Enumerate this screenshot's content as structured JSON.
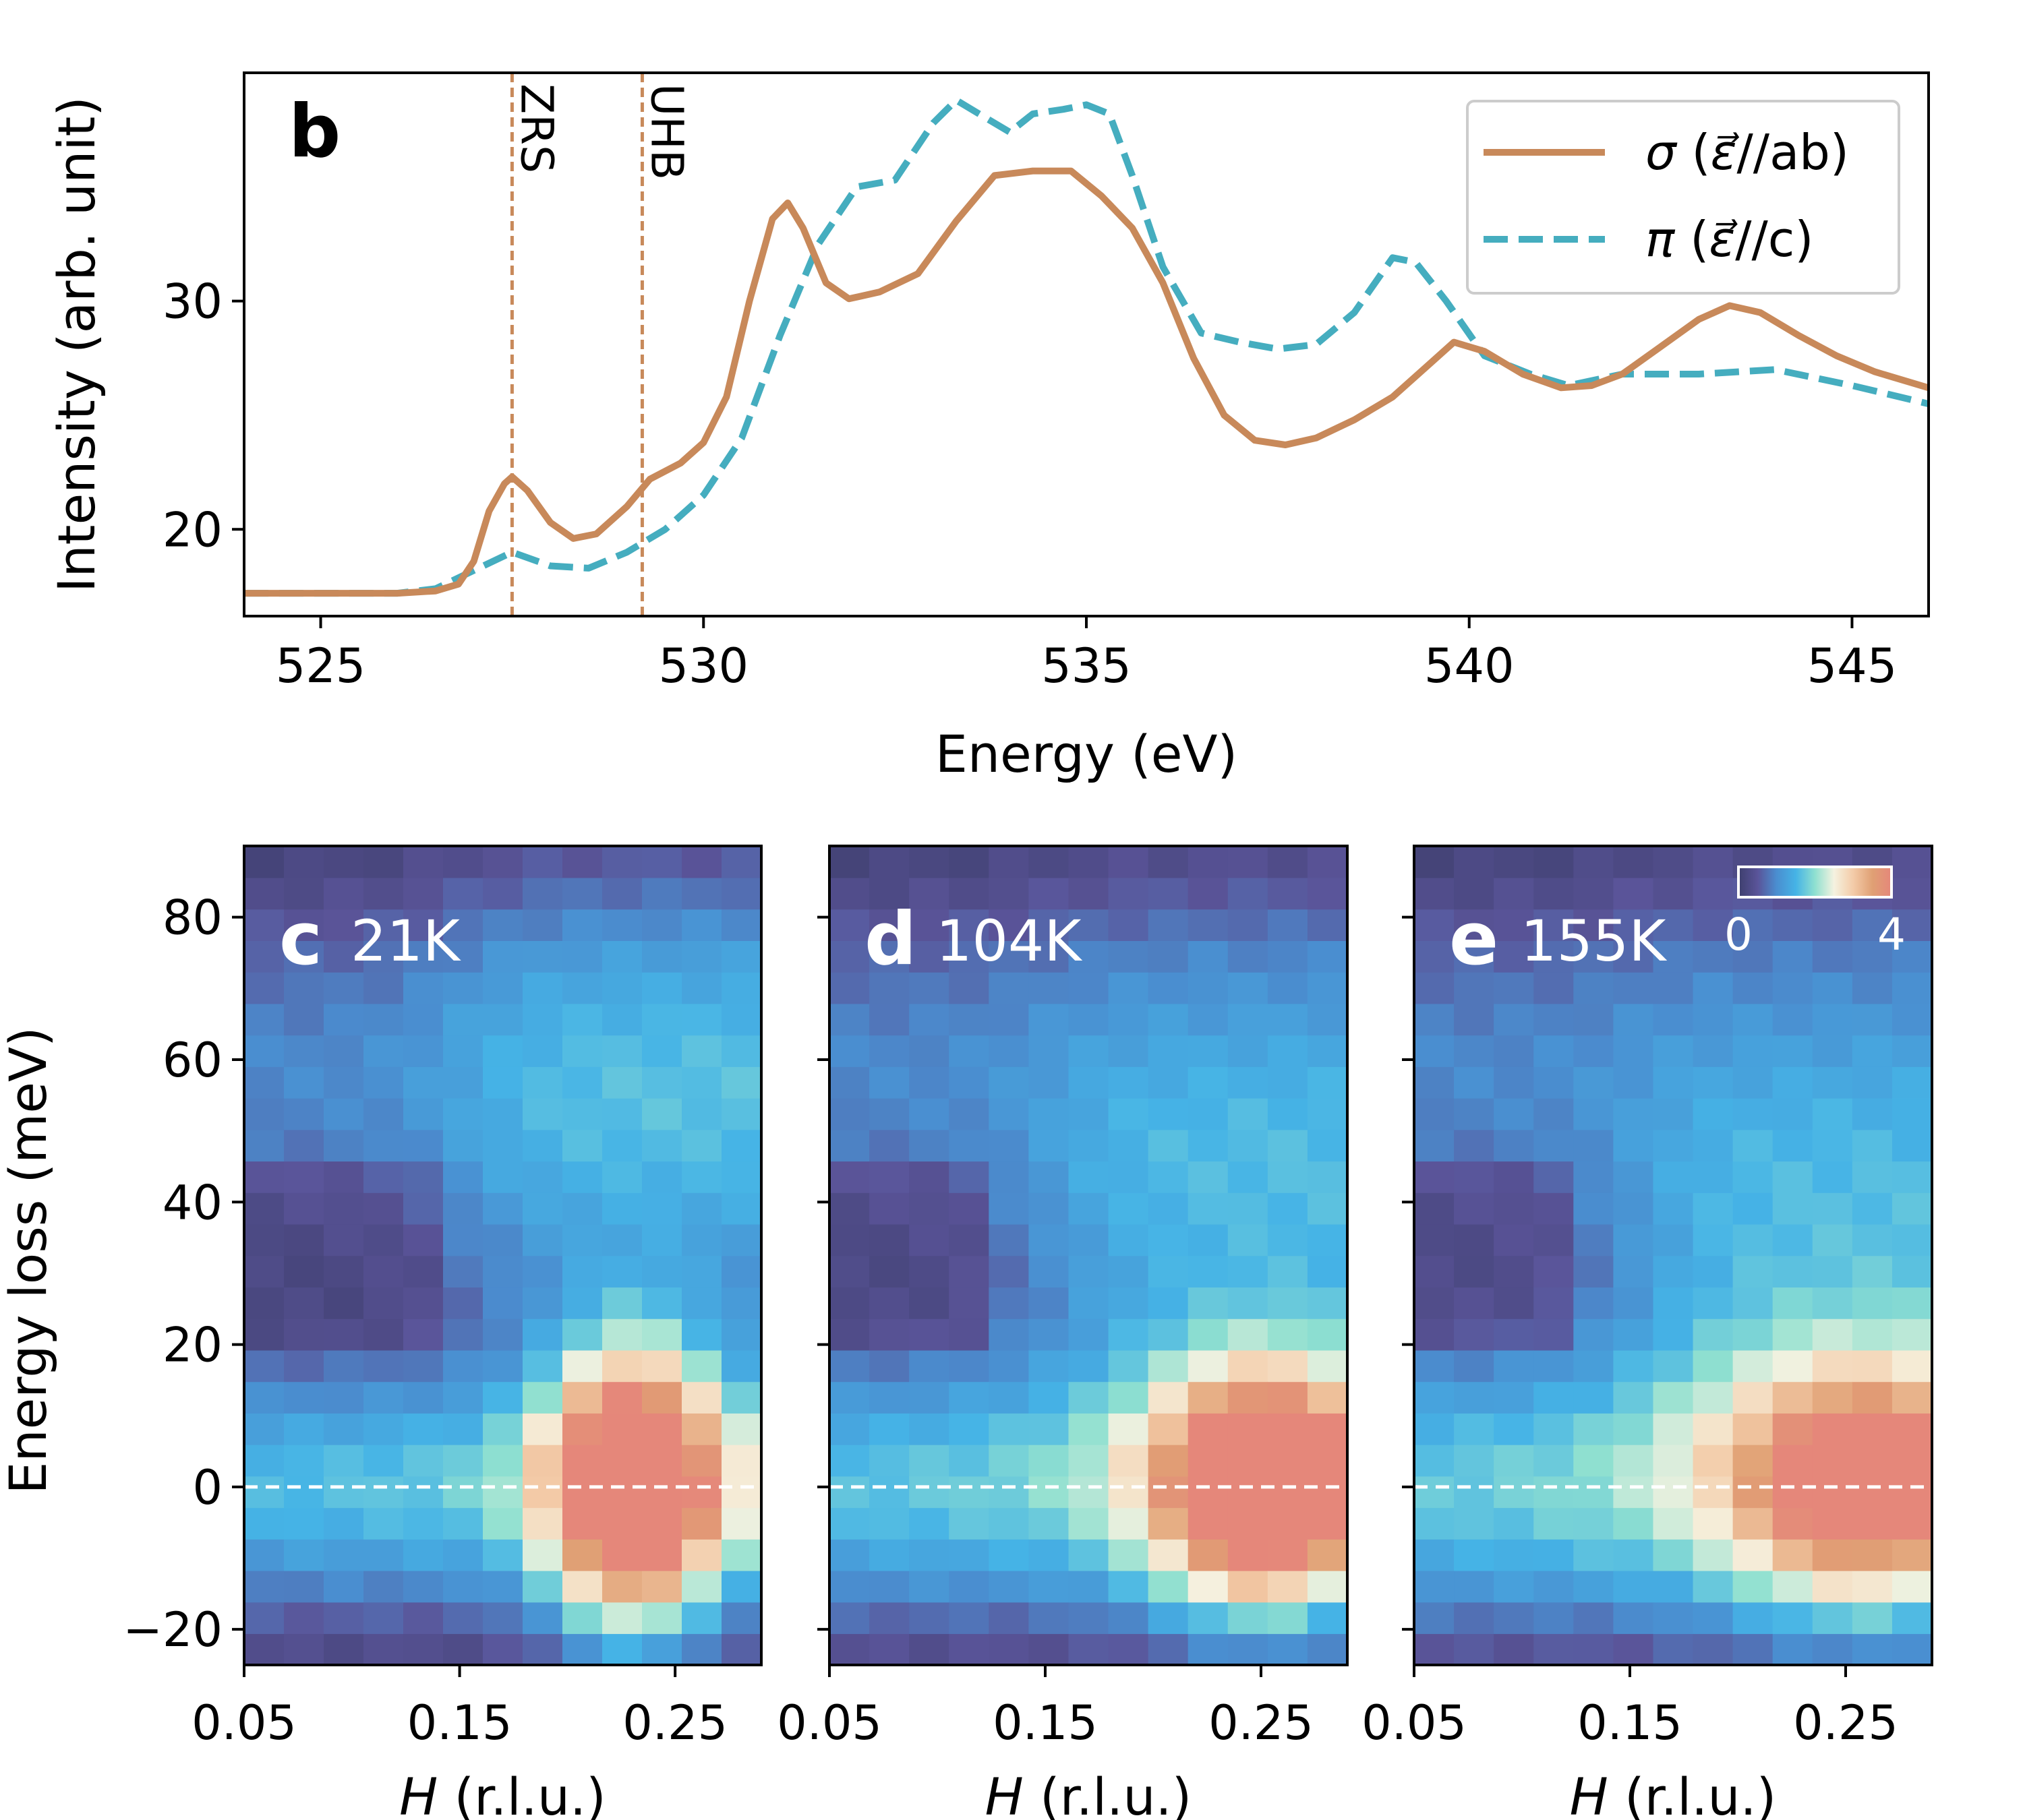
{
  "chart_data": [
    {
      "type": "line",
      "panel": "b",
      "xlabel": "Energy (eV)",
      "ylabel": "Intensity (arb. unit)",
      "xlim": [
        524,
        546
      ],
      "ylim": [
        16.2,
        40
      ],
      "xticks": [
        "525",
        "530",
        "535",
        "540",
        "545"
      ],
      "yticks": [
        "20",
        "30"
      ],
      "vlines": [
        {
          "x": 527.5,
          "label": "ZRS"
        },
        {
          "x": 529.2,
          "label": "UHB"
        }
      ],
      "legend_position": "top-right",
      "series": [
        {
          "name": "σ (ε⃗//ab)",
          "legend_symbol": "σ",
          "legend_arg": "(",
          "legend_pol": "ε⃗",
          "legend_rest": "//ab)",
          "style": "solid",
          "color": "#c8895a",
          "x": [
            524,
            525,
            526,
            526.5,
            526.8,
            527.0,
            527.2,
            527.4,
            527.5,
            527.7,
            528.0,
            528.3,
            528.6,
            529.0,
            529.3,
            529.7,
            530.0,
            530.3,
            530.6,
            530.9,
            531.1,
            531.3,
            531.6,
            531.9,
            532.3,
            532.8,
            533.3,
            533.8,
            534.3,
            534.8,
            535.2,
            535.6,
            536.0,
            536.4,
            536.8,
            537.2,
            537.6,
            538.0,
            538.5,
            539.0,
            539.5,
            539.8,
            540.2,
            540.7,
            541.2,
            541.6,
            542.0,
            542.5,
            543.0,
            543.4,
            543.8,
            544.3,
            544.8,
            545.3,
            546.0
          ],
          "y": [
            17.2,
            17.2,
            17.2,
            17.3,
            17.6,
            18.6,
            20.8,
            22.0,
            22.3,
            21.7,
            20.3,
            19.6,
            19.8,
            21.0,
            22.2,
            22.9,
            23.8,
            25.8,
            30.0,
            33.6,
            34.3,
            33.2,
            30.8,
            30.1,
            30.4,
            31.2,
            33.5,
            35.5,
            35.7,
            35.7,
            34.6,
            33.2,
            30.8,
            27.5,
            25.0,
            23.9,
            23.7,
            24.0,
            24.8,
            25.8,
            27.3,
            28.2,
            27.8,
            26.8,
            26.2,
            26.3,
            26.8,
            28.0,
            29.2,
            29.8,
            29.5,
            28.5,
            27.6,
            26.9,
            26.2
          ]
        },
        {
          "name": "π (ε⃗//c)",
          "legend_symbol": "π",
          "legend_arg": "(",
          "legend_pol": "ε⃗",
          "legend_rest": "//c)",
          "style": "dashed",
          "color": "#45adbf",
          "x": [
            524,
            525,
            526,
            526.5,
            527.0,
            527.5,
            528.0,
            528.5,
            529.0,
            529.5,
            530.0,
            530.5,
            531.0,
            531.5,
            532.0,
            532.5,
            533.0,
            533.3,
            533.6,
            534.0,
            534.3,
            534.7,
            535.0,
            535.3,
            535.6,
            536.0,
            536.5,
            537.0,
            537.5,
            538.0,
            538.5,
            539.0,
            539.3,
            539.7,
            540.2,
            540.8,
            541.3,
            542.0,
            543.0,
            544.0,
            545.0,
            546.0
          ],
          "y": [
            17.2,
            17.2,
            17.2,
            17.4,
            18.2,
            19.0,
            18.4,
            18.3,
            19.0,
            20.0,
            21.5,
            24.0,
            28.5,
            32.5,
            35.0,
            35.3,
            37.8,
            38.8,
            38.2,
            37.4,
            38.2,
            38.4,
            38.6,
            38.2,
            35.5,
            31.5,
            28.6,
            28.2,
            27.9,
            28.1,
            29.5,
            31.9,
            31.7,
            30.0,
            27.6,
            26.8,
            26.3,
            26.8,
            26.8,
            27.0,
            26.3,
            25.5
          ]
        }
      ]
    },
    {
      "type": "heatmap",
      "panel": "c",
      "label": "21K",
      "xlabel_var": "H",
      "xlabel_unit": "(r.l.u.)",
      "ylabel": "Energy loss (meV)",
      "xlim": [
        0.05,
        0.29
      ],
      "ylim": [
        -25,
        90
      ],
      "xticks": [
        "0.05",
        "0.15",
        "0.25"
      ],
      "yticks": [
        "80",
        "60",
        "40",
        "20",
        "0",
        "−20"
      ],
      "zero_line": 0,
      "peak": {
        "h": 0.23,
        "e": 0,
        "amplitude": 4.0,
        "h_width": 0.027,
        "e_width": 14
      },
      "background_band": {
        "amplitude": 1.6,
        "e_width": 11
      },
      "high_energy_feature": {
        "amplitude": 1.3,
        "e_center": 55,
        "e_width": 22,
        "h_onset": 0.15
      },
      "low_h_dark_region": {
        "h_max": 0.15,
        "e_min": 20,
        "e_max": 45
      }
    },
    {
      "type": "heatmap",
      "panel": "d",
      "label": "104K",
      "xlabel_var": "H",
      "xlabel_unit": "(r.l.u.)",
      "xlim": [
        0.05,
        0.29
      ],
      "ylim": [
        -25,
        90
      ],
      "xticks": [
        "0.05",
        "0.15",
        "0.25"
      ],
      "zero_line": 0,
      "peak": {
        "h": 0.25,
        "e": 0,
        "amplitude": 3.5,
        "h_width": 0.034,
        "e_width": 12
      },
      "background_band": {
        "amplitude": 1.7,
        "e_width": 12
      },
      "high_energy_feature": {
        "amplitude": 1.25,
        "e_center": 45,
        "e_width": 24,
        "h_onset": 0.15
      },
      "low_h_dark_region": {
        "h_max": 0.13,
        "e_min": 20,
        "e_max": 45
      }
    },
    {
      "type": "heatmap",
      "panel": "e",
      "label": "155K",
      "xlabel_var": "H",
      "xlabel_unit": "(r.l.u.)",
      "xlim": [
        0.05,
        0.29
      ],
      "ylim": [
        -25,
        90
      ],
      "xticks": [
        "0.05",
        "0.15",
        "0.25"
      ],
      "zero_line": 0,
      "peak": {
        "h": 0.255,
        "e": 0,
        "amplitude": 2.4,
        "h_width": 0.04,
        "e_width": 12
      },
      "background_band": {
        "amplitude": 1.8,
        "e_width": 13
      },
      "high_energy_feature": {
        "amplitude": 1.25,
        "e_center": 40,
        "e_width": 26,
        "h_onset": 0.15
      },
      "low_h_dark_region": {
        "h_max": 0.12,
        "e_min": 20,
        "e_max": 45
      },
      "colorbar": {
        "min_label": "0",
        "max_label": "4",
        "vmin": 0,
        "vmax": 4
      }
    }
  ],
  "colormap": [
    "#3e3f6e",
    "#5a5499",
    "#4a8ed0",
    "#45b3e6",
    "#8fe0d0",
    "#f5f2e0",
    "#f3cba8",
    "#e0a074",
    "#e5877a"
  ]
}
